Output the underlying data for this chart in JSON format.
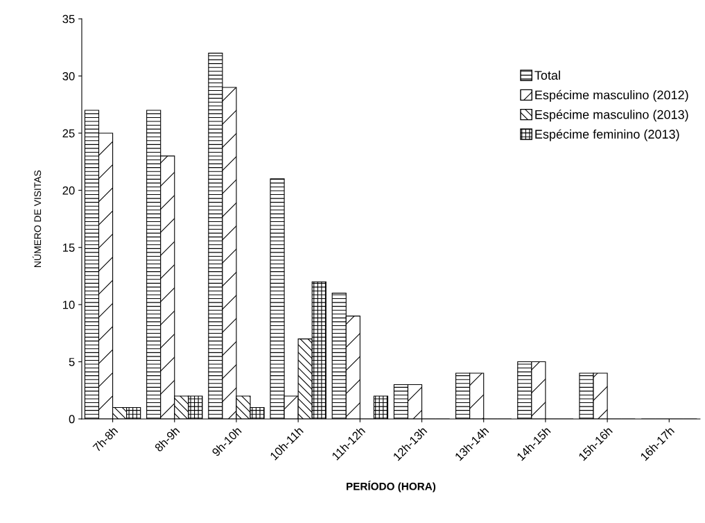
{
  "chart_data": {
    "type": "bar",
    "xlabel": "PERÍODO (HORA)",
    "ylabel": "NÚMERO DE VISITAS",
    "categories": [
      "7h-8h",
      "8h-9h",
      "9h-10h",
      "10h-11h",
      "11h-12h",
      "12h-13h",
      "13h-14h",
      "14h-15h",
      "15h-16h",
      "16h-17h"
    ],
    "series": [
      {
        "name": "Total",
        "color": "#000000",
        "values": [
          27,
          27,
          32,
          21,
          11,
          3,
          4,
          5,
          4,
          0
        ]
      },
      {
        "name": "Espécime masculino (2012)",
        "color": "#000000",
        "values": [
          25,
          23,
          29,
          2,
          9,
          3,
          4,
          5,
          4,
          0
        ]
      },
      {
        "name": "Espécime masculino (2013)",
        "color": "#000000",
        "values": [
          1,
          2,
          2,
          7,
          0,
          0,
          0,
          0,
          0,
          0
        ]
      },
      {
        "name": "Espécime feminino (2013)",
        "color": "#000000",
        "values": [
          1,
          2,
          1,
          12,
          2,
          0,
          0,
          0,
          0,
          0
        ]
      }
    ],
    "ylim": [
      0,
      35
    ],
    "yticks": [
      0,
      5,
      10,
      15,
      20,
      25,
      30,
      35
    ],
    "grid": false,
    "legend": "top right"
  }
}
